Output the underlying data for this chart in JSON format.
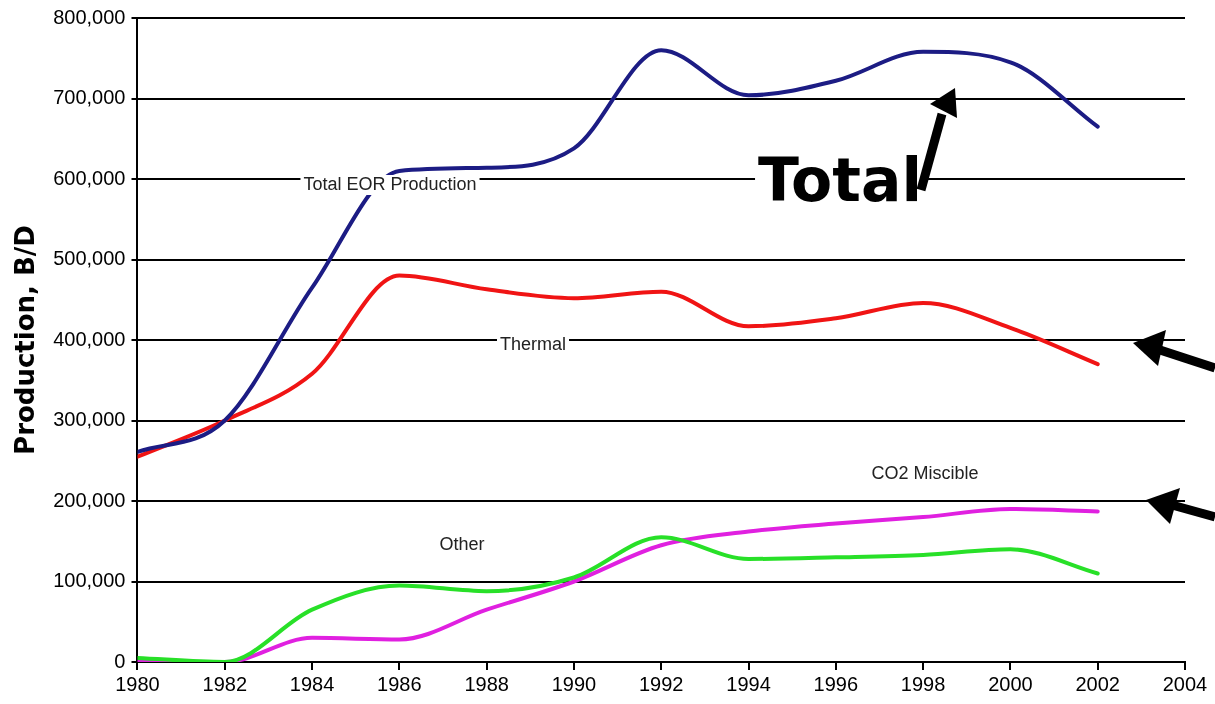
{
  "chart_data": {
    "type": "line",
    "ylabel": "Production, B/D",
    "x": [
      1980,
      1982,
      1984,
      1986,
      1988,
      1990,
      1992,
      1994,
      1996,
      1998,
      2000,
      2002
    ],
    "series": [
      {
        "color": "#1c1c84",
        "values": [
          261000,
          300000,
          465000,
          610000,
          614000,
          638000,
          760000,
          704000,
          722000,
          758000,
          745000,
          665000
        ]
      },
      {
        "color": "#f01414",
        "values": [
          255000,
          300000,
          358000,
          480000,
          463000,
          452000,
          460000,
          417000,
          427000,
          446000,
          415000,
          370000
        ]
      },
      {
        "color": "#28e028",
        "values": [
          5000,
          0,
          65000,
          95000,
          88000,
          105000,
          155000,
          128000,
          130000,
          133000,
          140000,
          110000
        ]
      },
      {
        "color": "#e020e0",
        "values": [
          0,
          0,
          30000,
          28000,
          65000,
          100000,
          145000,
          162000,
          172000,
          180000,
          190000,
          187000
        ]
      }
    ],
    "xlim": [
      1980,
      2004
    ],
    "xticks": [
      1980,
      1982,
      1984,
      1986,
      1988,
      1990,
      1992,
      1994,
      1996,
      1998,
      2000,
      2002,
      2004
    ],
    "ylim": [
      0,
      800000
    ],
    "yticks": [
      0,
      {
        "value": 100000,
        "label": "100,000"
      },
      {
        "value": 200000,
        "label": "200,000"
      },
      {
        "value": 300000,
        "label": "300,000"
      },
      {
        "value": 400000,
        "label": "400,000"
      },
      {
        "value": 500000,
        "label": "500,000"
      },
      {
        "value": 600000,
        "label": "600,000"
      },
      {
        "value": 700000,
        "label": "700,000"
      },
      {
        "value": 800000,
        "label": "800,000"
      }
    ],
    "grid": "y",
    "legend": false,
    "marker": "none",
    "line_style": "solid",
    "annotations": [
      "Total EOR Production",
      "Thermal",
      "Other",
      "CO2 Miscible",
      "Total"
    ]
  }
}
